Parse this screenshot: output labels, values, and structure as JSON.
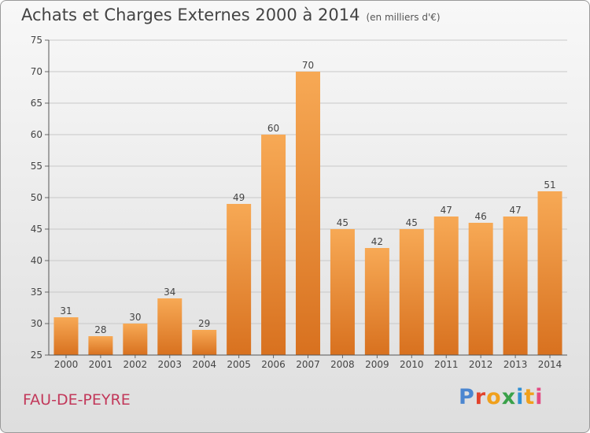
{
  "header": {
    "title": "Achats et Charges Externes 2000 à 2014",
    "subtitle": "(en milliers d'€)"
  },
  "footer": {
    "location": "FAU-DE-PEYRE",
    "brand": "Proxiti"
  },
  "chart_data": {
    "type": "bar",
    "categories": [
      "2000",
      "2001",
      "2002",
      "2003",
      "2004",
      "2005",
      "2006",
      "2007",
      "2008",
      "2009",
      "2010",
      "2011",
      "2012",
      "2013",
      "2014"
    ],
    "values": [
      31,
      28,
      30,
      34,
      29,
      49,
      60,
      70,
      45,
      42,
      45,
      47,
      46,
      47,
      51
    ],
    "ylim": [
      25,
      75
    ],
    "yticks": [
      25,
      30,
      35,
      40,
      45,
      50,
      55,
      60,
      65,
      70,
      75
    ],
    "grid": true,
    "bar_color_top": "#f7a955",
    "bar_color_bottom": "#d8711f"
  }
}
